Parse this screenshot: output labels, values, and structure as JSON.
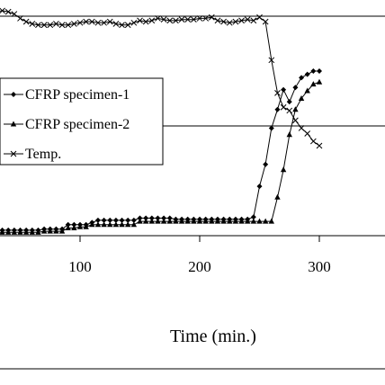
{
  "chart_data": {
    "type": "line",
    "xlabel": "Time (min.)",
    "x_ticks": [
      100,
      200,
      300
    ],
    "xlim": [
      0,
      350
    ],
    "grid": "horizontal",
    "legend_position": "left",
    "series": [
      {
        "name": "CFRP specimen-1",
        "marker": "diamond",
        "x": [
          0,
          5,
          10,
          15,
          20,
          25,
          30,
          35,
          40,
          45,
          50,
          55,
          60,
          65,
          70,
          75,
          80,
          85,
          90,
          95,
          100,
          105,
          110,
          115,
          120,
          125,
          130,
          135,
          140,
          145,
          150,
          155,
          160,
          165,
          170,
          175,
          180,
          185,
          190,
          195,
          200,
          205,
          210,
          215,
          220,
          225,
          230,
          235,
          240,
          245,
          250,
          255,
          260,
          265,
          270,
          275,
          280,
          285,
          290,
          295,
          300
        ],
        "y": [
          0.02,
          0.03,
          0.04,
          0.05,
          0.05,
          0.05,
          0.05,
          0.05,
          0.05,
          0.05,
          0.05,
          0.05,
          0.05,
          0.05,
          0.06,
          0.06,
          0.06,
          0.06,
          0.1,
          0.1,
          0.1,
          0.1,
          0.12,
          0.14,
          0.14,
          0.14,
          0.14,
          0.14,
          0.14,
          0.14,
          0.16,
          0.16,
          0.16,
          0.16,
          0.16,
          0.16,
          0.15,
          0.15,
          0.15,
          0.15,
          0.15,
          0.15,
          0.15,
          0.15,
          0.15,
          0.15,
          0.15,
          0.15,
          0.15,
          0.17,
          0.45,
          0.65,
          0.98,
          1.15,
          1.33,
          1.22,
          1.35,
          1.44,
          1.47,
          1.5,
          1.5
        ]
      },
      {
        "name": "CFRP specimen-2",
        "marker": "triangle",
        "x": [
          0,
          5,
          10,
          15,
          20,
          25,
          30,
          35,
          40,
          45,
          50,
          55,
          60,
          65,
          70,
          75,
          80,
          85,
          90,
          95,
          100,
          105,
          110,
          115,
          120,
          125,
          130,
          135,
          140,
          145,
          150,
          155,
          160,
          165,
          170,
          175,
          180,
          185,
          190,
          195,
          200,
          205,
          210,
          215,
          220,
          225,
          230,
          235,
          240,
          245,
          250,
          255,
          260,
          265,
          270,
          275,
          280,
          285,
          290,
          295,
          300
        ],
        "y": [
          0.02,
          0.02,
          0.03,
          0.03,
          0.03,
          0.03,
          0.03,
          0.03,
          0.03,
          0.03,
          0.03,
          0.03,
          0.03,
          0.03,
          0.04,
          0.04,
          0.04,
          0.04,
          0.07,
          0.07,
          0.08,
          0.08,
          0.1,
          0.1,
          0.1,
          0.1,
          0.1,
          0.1,
          0.1,
          0.1,
          0.13,
          0.13,
          0.13,
          0.13,
          0.13,
          0.13,
          0.13,
          0.13,
          0.13,
          0.13,
          0.13,
          0.13,
          0.13,
          0.13,
          0.13,
          0.13,
          0.13,
          0.13,
          0.13,
          0.13,
          0.13,
          0.13,
          0.13,
          0.35,
          0.6,
          0.92,
          1.15,
          1.25,
          1.32,
          1.38,
          1.4
        ]
      },
      {
        "name": "Temp.",
        "marker": "x",
        "x": [
          0,
          5,
          10,
          15,
          20,
          25,
          30,
          35,
          40,
          45,
          50,
          55,
          60,
          65,
          70,
          75,
          80,
          85,
          90,
          95,
          100,
          105,
          110,
          115,
          120,
          125,
          130,
          135,
          140,
          145,
          150,
          155,
          160,
          165,
          170,
          175,
          180,
          185,
          190,
          195,
          200,
          205,
          210,
          215,
          220,
          225,
          230,
          235,
          240,
          245,
          250,
          255,
          260,
          265,
          270,
          275,
          280,
          285,
          290,
          295,
          300
        ],
        "y": [
          2.0,
          1.98,
          1.99,
          1.98,
          2.01,
          2.02,
          2.04,
          2.05,
          2.04,
          2.02,
          1.98,
          1.95,
          1.93,
          1.92,
          1.92,
          1.92,
          1.93,
          1.92,
          1.92,
          1.93,
          1.94,
          1.95,
          1.95,
          1.94,
          1.94,
          1.95,
          1.93,
          1.92,
          1.92,
          1.94,
          1.96,
          1.95,
          1.96,
          1.98,
          1.97,
          1.96,
          1.96,
          1.97,
          1.97,
          1.97,
          1.98,
          1.98,
          1.99,
          1.96,
          1.95,
          1.94,
          1.95,
          1.96,
          1.97,
          1.96,
          1.99,
          1.95,
          1.6,
          1.3,
          1.17,
          1.14,
          1.05,
          0.98,
          0.93,
          0.86,
          0.82
        ]
      }
    ]
  }
}
